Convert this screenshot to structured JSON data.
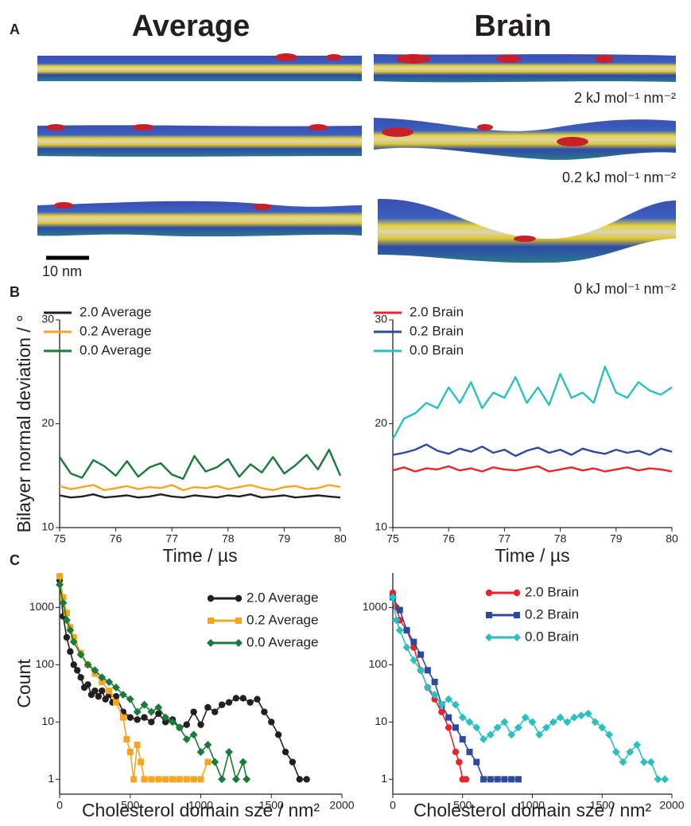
{
  "panel_labels": [
    "A",
    "B",
    "C"
  ],
  "panel_a": {
    "columns": [
      "Average",
      "Brain"
    ],
    "force_labels": [
      "2 kJ mol⁻¹ nm⁻²",
      "0.2 kJ mol⁻¹ nm⁻²",
      "0 kJ mol⁻¹ nm⁻²"
    ],
    "scale_bar": "10 nm"
  },
  "chart_data": [
    {
      "type": "line",
      "ylabel": "Bilayer normal deviation / °",
      "xlabel": "Time / µs",
      "xlim": [
        75,
        80
      ],
      "xticks": [
        75,
        76,
        77,
        78,
        79,
        80
      ],
      "ylim": [
        10,
        30
      ],
      "yticks": [
        10,
        20,
        30
      ],
      "x": [
        75,
        75.2,
        75.4,
        75.6,
        75.8,
        76,
        76.2,
        76.4,
        76.6,
        76.8,
        77,
        77.2,
        77.4,
        77.6,
        77.8,
        78,
        78.2,
        78.4,
        78.6,
        78.8,
        79,
        79.2,
        79.4,
        79.6,
        79.8,
        80
      ],
      "series": [
        {
          "name": "2.0 Average",
          "color": "#231f20",
          "values": [
            13.1,
            12.9,
            13.0,
            13.2,
            12.9,
            13.0,
            13.1,
            12.9,
            13.0,
            13.2,
            13.0,
            12.9,
            13.1,
            13.0,
            12.9,
            13.1,
            13.0,
            13.2,
            12.9,
            13.0,
            13.1,
            12.9,
            13.0,
            13.1,
            13.0,
            12.9
          ]
        },
        {
          "name": "0.2 Average",
          "color": "#f7a520",
          "values": [
            14.0,
            13.7,
            13.9,
            14.1,
            13.6,
            13.8,
            14.0,
            13.7,
            13.9,
            13.8,
            14.1,
            13.6,
            13.9,
            13.8,
            14.0,
            13.7,
            13.9,
            14.1,
            13.8,
            13.6,
            13.9,
            14.0,
            13.7,
            13.8,
            14.1,
            13.9
          ]
        },
        {
          "name": "0.0 Average",
          "color": "#1a7a3a",
          "values": [
            16.8,
            15.2,
            14.8,
            16.5,
            15.9,
            15.0,
            16.4,
            14.9,
            15.8,
            16.2,
            15.1,
            14.7,
            16.9,
            15.4,
            15.8,
            16.6,
            14.9,
            16.1,
            15.3,
            16.8,
            15.2,
            16.0,
            17.0,
            15.6,
            17.5,
            15.0
          ]
        }
      ]
    },
    {
      "type": "line",
      "xlabel": "Time / µs",
      "xlim": [
        75,
        80
      ],
      "xticks": [
        75,
        76,
        77,
        78,
        79,
        80
      ],
      "ylim": [
        10,
        30
      ],
      "yticks": [
        10,
        20,
        30
      ],
      "x": [
        75,
        75.2,
        75.4,
        75.6,
        75.8,
        76,
        76.2,
        76.4,
        76.6,
        76.8,
        77,
        77.2,
        77.4,
        77.6,
        77.8,
        78,
        78.2,
        78.4,
        78.6,
        78.8,
        79,
        79.2,
        79.4,
        79.6,
        79.8,
        80
      ],
      "series": [
        {
          "name": "2.0 Brain",
          "color": "#e8252a",
          "values": [
            15.5,
            15.8,
            15.4,
            15.7,
            15.6,
            15.9,
            15.5,
            15.7,
            15.4,
            15.8,
            15.6,
            15.5,
            15.7,
            15.9,
            15.4,
            15.6,
            15.8,
            15.5,
            15.7,
            15.4,
            15.6,
            15.8,
            15.5,
            15.7,
            15.6,
            15.4
          ]
        },
        {
          "name": "0.2 Brain",
          "color": "#2e4a9e",
          "values": [
            17.0,
            17.2,
            17.5,
            18.0,
            17.4,
            17.1,
            17.6,
            17.3,
            17.8,
            17.2,
            17.5,
            16.9,
            17.4,
            17.7,
            17.2,
            17.5,
            17.0,
            17.6,
            17.3,
            17.1,
            17.5,
            17.2,
            17.4,
            17.0,
            17.6,
            17.3
          ]
        },
        {
          "name": "0.0 Brain",
          "color": "#2bbfbf",
          "values": [
            18.5,
            20.5,
            21.0,
            22.0,
            21.5,
            23.5,
            22.0,
            24.0,
            21.5,
            23.0,
            22.5,
            24.5,
            22.0,
            23.5,
            21.8,
            24.8,
            22.5,
            23.0,
            22.0,
            25.5,
            23.0,
            22.5,
            24.0,
            23.2,
            22.8,
            23.5
          ]
        }
      ]
    },
    {
      "type": "line",
      "ylabel": "Count",
      "xlabel": "Cholesterol domain sze / nm²",
      "log_scale": true,
      "xlim": [
        0,
        2000
      ],
      "xticks": [
        0,
        500,
        1000,
        1500,
        2000
      ],
      "ylim": [
        0.55,
        4000
      ],
      "yticks": [
        1,
        10,
        100,
        1000
      ],
      "series": [
        {
          "name": "2.0 Average",
          "color": "#231f20",
          "marker": "circle",
          "x": [
            0,
            25,
            50,
            75,
            100,
            125,
            150,
            175,
            200,
            225,
            250,
            275,
            300,
            325,
            350,
            375,
            400,
            450,
            500,
            550,
            600,
            650,
            700,
            750,
            800,
            850,
            900,
            950,
            1000,
            1050,
            1100,
            1150,
            1200,
            1250,
            1300,
            1350,
            1400,
            1450,
            1500,
            1550,
            1600,
            1650,
            1700,
            1750
          ],
          "values": [
            3000,
            700,
            300,
            170,
            100,
            80,
            60,
            40,
            45,
            30,
            35,
            28,
            35,
            25,
            30,
            22,
            28,
            15,
            12,
            11,
            12,
            10,
            14,
            10,
            11,
            8,
            9,
            15,
            9,
            18,
            15,
            20,
            22,
            26,
            26,
            22,
            25,
            15,
            10,
            6,
            3,
            2,
            1,
            1
          ]
        },
        {
          "name": "0.2 Average",
          "color": "#f7a520",
          "marker": "square",
          "x": [
            0,
            25,
            50,
            75,
            100,
            150,
            200,
            250,
            300,
            350,
            400,
            450,
            475,
            500,
            525,
            550,
            575,
            600,
            650,
            700,
            750,
            800,
            850,
            900,
            950,
            1000,
            1050
          ],
          "values": [
            3500,
            1500,
            800,
            450,
            300,
            160,
            100,
            70,
            50,
            35,
            22,
            12,
            5,
            3,
            1,
            4,
            2,
            1,
            1,
            1,
            1,
            1,
            1,
            1,
            1,
            1,
            2
          ]
        },
        {
          "name": "0.0 Average",
          "color": "#1a7a3a",
          "marker": "diamond",
          "x": [
            0,
            25,
            50,
            75,
            100,
            150,
            200,
            250,
            300,
            350,
            400,
            450,
            500,
            550,
            600,
            650,
            700,
            750,
            800,
            850,
            900,
            950,
            1000,
            1050,
            1100,
            1150,
            1200,
            1250,
            1300,
            1325
          ],
          "values": [
            2500,
            1200,
            600,
            400,
            250,
            150,
            100,
            80,
            60,
            50,
            40,
            30,
            25,
            15,
            20,
            15,
            18,
            12,
            10,
            8,
            5,
            6,
            3,
            4,
            2,
            1,
            3,
            1,
            2,
            1
          ]
        }
      ]
    },
    {
      "type": "line",
      "xlabel": "Cholesterol domain sze / nm²",
      "log_scale": true,
      "xlim": [
        0,
        2000
      ],
      "xticks": [
        0,
        500,
        1000,
        1500,
        2000
      ],
      "ylim": [
        0.55,
        4000
      ],
      "yticks": [
        1,
        10,
        100,
        1000
      ],
      "series": [
        {
          "name": "2.0 Brain",
          "color": "#e8252a",
          "marker": "circle",
          "x": [
            0,
            25,
            50,
            100,
            150,
            200,
            250,
            300,
            350,
            400,
            450,
            475,
            500,
            525
          ],
          "values": [
            1800,
            1000,
            600,
            400,
            200,
            80,
            40,
            25,
            15,
            8,
            3,
            2,
            1,
            1
          ]
        },
        {
          "name": "0.2 Brain",
          "color": "#2e4a9e",
          "marker": "square",
          "x": [
            0,
            50,
            100,
            150,
            200,
            250,
            300,
            350,
            400,
            450,
            500,
            550,
            600,
            650,
            700,
            750,
            800,
            850,
            900
          ],
          "values": [
            1500,
            900,
            400,
            250,
            150,
            80,
            50,
            20,
            12,
            8,
            5,
            3,
            2,
            1,
            1,
            1,
            1,
            1,
            1
          ]
        },
        {
          "name": "0.0 Brain",
          "color": "#2bbfbf",
          "marker": "diamond",
          "x": [
            0,
            25,
            50,
            100,
            150,
            200,
            250,
            300,
            350,
            400,
            450,
            500,
            550,
            600,
            650,
            700,
            750,
            800,
            850,
            900,
            950,
            1000,
            1050,
            1100,
            1150,
            1200,
            1250,
            1300,
            1350,
            1400,
            1450,
            1500,
            1550,
            1600,
            1650,
            1700,
            1750,
            1800,
            1850,
            1900,
            1950
          ],
          "values": [
            1500,
            600,
            400,
            200,
            120,
            80,
            40,
            30,
            20,
            25,
            20,
            12,
            10,
            8,
            5,
            6,
            8,
            10,
            6,
            8,
            12,
            10,
            6,
            8,
            10,
            12,
            10,
            12,
            13,
            14,
            10,
            8,
            6,
            3,
            2,
            3,
            4,
            2,
            2,
            1,
            1
          ]
        }
      ]
    }
  ]
}
